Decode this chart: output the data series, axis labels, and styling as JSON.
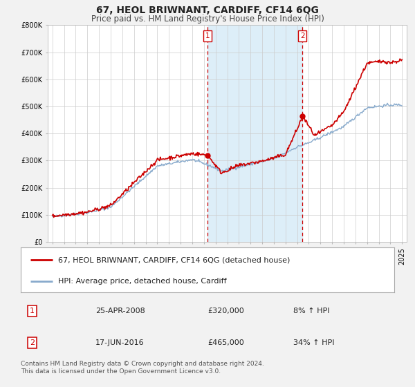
{
  "title": "67, HEOL BRIWNANT, CARDIFF, CF14 6QG",
  "subtitle": "Price paid vs. HM Land Registry's House Price Index (HPI)",
  "ylim": [
    0,
    800000
  ],
  "yticks": [
    0,
    100000,
    200000,
    300000,
    400000,
    500000,
    600000,
    700000,
    800000
  ],
  "ytick_labels": [
    "£0",
    "£100K",
    "£200K",
    "£300K",
    "£400K",
    "£500K",
    "£600K",
    "£700K",
    "£800K"
  ],
  "background_color": "#f2f2f2",
  "plot_bg_color": "#ffffff",
  "grid_color": "#cccccc",
  "sale1_date_num": 2008.32,
  "sale1_price": 320000,
  "sale1_label": "25-APR-2008",
  "sale2_date_num": 2016.46,
  "sale2_price": 465000,
  "sale2_label": "17-JUN-2016",
  "property_line_color": "#cc0000",
  "hpi_line_color": "#88aacc",
  "shaded_region_color": "#ddeef8",
  "legend_property": "67, HEOL BRIWNANT, CARDIFF, CF14 6QG (detached house)",
  "legend_hpi": "HPI: Average price, detached house, Cardiff",
  "footer_line1": "Contains HM Land Registry data © Crown copyright and database right 2024.",
  "footer_line2": "This data is licensed under the Open Government Licence v3.0.",
  "title_fontsize": 10,
  "subtitle_fontsize": 8.5,
  "tick_fontsize": 7,
  "legend_fontsize": 8,
  "annot_fontsize": 8,
  "footer_fontsize": 6.5
}
